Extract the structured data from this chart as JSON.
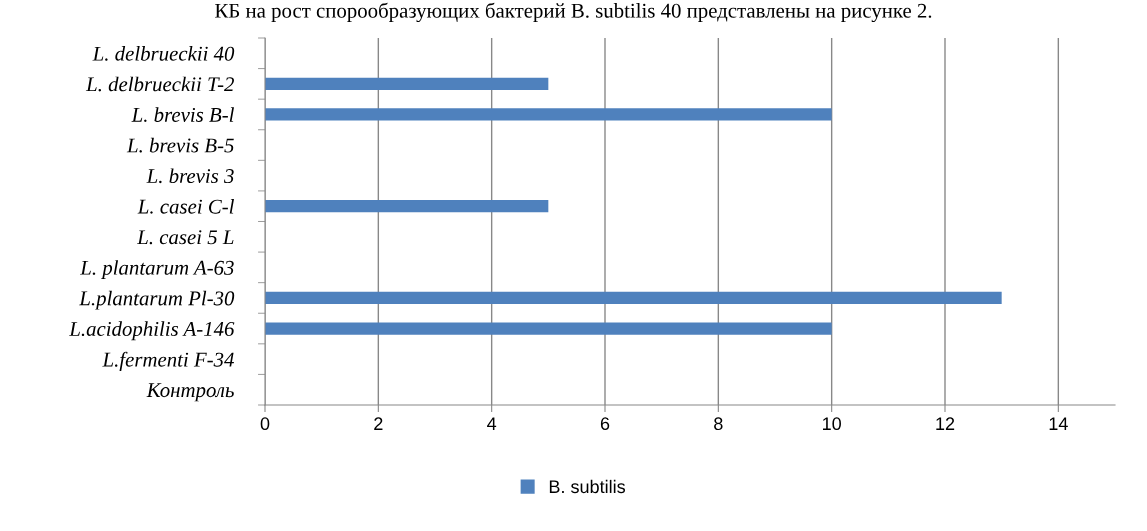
{
  "chart_data": {
    "type": "bar",
    "orientation": "horizontal",
    "title": "КБ на рост спорообразующих бактерий B. subtilis 40 представлены на рисунке 2.",
    "categories": [
      "L. delbrueckii 40",
      "L. delbrueckii T-2",
      "L. brevis B-l",
      "L. brevis B-5",
      "L. brevis 3",
      "L. casei C-l",
      "L. casei 5 L",
      "L. plantarum A-63",
      "L.plantarum Pl-30",
      "L.acidophilis A-146",
      "L.fermenti F-34",
      "Контроль"
    ],
    "series": [
      {
        "name": "B. subtilis",
        "color": "#4f81bd",
        "values": [
          0,
          5,
          10,
          0,
          0,
          5,
          0,
          0,
          13,
          10,
          0,
          0
        ]
      }
    ],
    "xlim": [
      0,
      15
    ],
    "xticks": [
      0,
      2,
      4,
      6,
      8,
      10,
      12,
      14
    ],
    "grid": "x",
    "legend": "bottom"
  }
}
